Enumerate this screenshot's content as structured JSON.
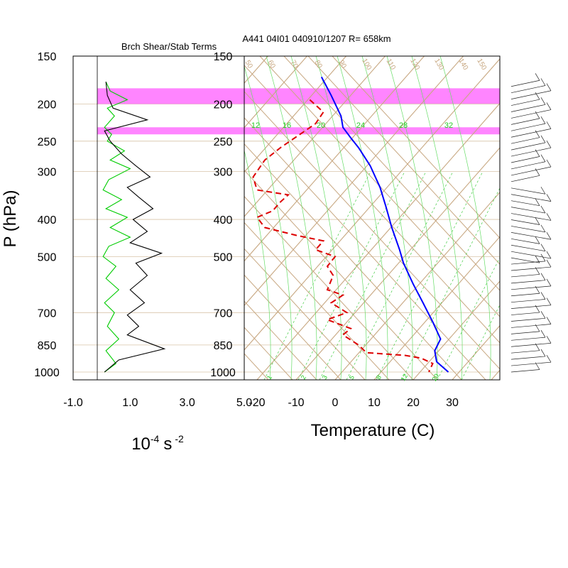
{
  "chart_data": [
    {
      "type": "line",
      "title": "Brch Shear/Stab Terms",
      "ylabel": "P (hPa)",
      "xlabel_base": "10",
      "xlabel_exp": "-4",
      "xlabel_unit": "s",
      "xlabel_unit_exp": "-2",
      "xticks": [
        "-1.0",
        "1.0",
        "3.0",
        "5.0"
      ],
      "yticks": [
        "150",
        "200",
        "250",
        "300",
        "400",
        "500",
        "700",
        "850",
        "1000"
      ],
      "y_scale": "log",
      "ylim": [
        1000,
        150
      ],
      "xlim": [
        -1.0,
        5.0
      ],
      "series": [
        {
          "color": "#00cc00",
          "points": [
            [
              0.15,
              175
            ],
            [
              0.3,
              185
            ],
            [
              0.9,
              195
            ],
            [
              0.2,
              205
            ],
            [
              0.45,
              215
            ],
            [
              0.1,
              230
            ],
            [
              0.35,
              240
            ],
            [
              0.2,
              250
            ],
            [
              0.8,
              265
            ],
            [
              0.3,
              280
            ],
            [
              1.0,
              295
            ],
            [
              0.25,
              315
            ],
            [
              0.05,
              335
            ],
            [
              0.7,
              355
            ],
            [
              0.15,
              375
            ],
            [
              0.9,
              395
            ],
            [
              0.3,
              420
            ],
            [
              1.0,
              445
            ],
            [
              0.25,
              470
            ],
            [
              0.05,
              500
            ],
            [
              0.5,
              530
            ],
            [
              0.15,
              570
            ],
            [
              0.6,
              610
            ],
            [
              0.1,
              660
            ],
            [
              0.45,
              700
            ],
            [
              0.2,
              760
            ],
            [
              0.6,
              820
            ],
            [
              0.15,
              880
            ],
            [
              0.5,
              950
            ],
            [
              0.1,
              1000
            ]
          ]
        },
        {
          "color": "#000000",
          "points": [
            [
              0.15,
              175
            ],
            [
              0.2,
              190
            ],
            [
              0.4,
              205
            ],
            [
              1.6,
              220
            ],
            [
              0.1,
              235
            ],
            [
              0.3,
              250
            ],
            [
              0.7,
              270
            ],
            [
              1.2,
              290
            ],
            [
              1.7,
              310
            ],
            [
              0.9,
              330
            ],
            [
              1.3,
              350
            ],
            [
              1.8,
              375
            ],
            [
              1.1,
              400
            ],
            [
              1.6,
              430
            ],
            [
              1.0,
              460
            ],
            [
              2.1,
              490
            ],
            [
              1.2,
              520
            ],
            [
              1.6,
              560
            ],
            [
              1.0,
              610
            ],
            [
              1.5,
              660
            ],
            [
              0.9,
              710
            ],
            [
              1.3,
              760
            ],
            [
              0.9,
              800
            ],
            [
              2.2,
              870
            ],
            [
              0.6,
              930
            ],
            [
              0.1,
              1000
            ]
          ]
        }
      ]
    },
    {
      "type": "line",
      "title": "A441 04I01 040910/1207 R= 658km",
      "xlabel": "Temperature (C)",
      "xticks": [
        "-20",
        "-10",
        "0",
        "10",
        "20",
        "30"
      ],
      "yticks": [
        "150",
        "200",
        "250",
        "300",
        "400",
        "500",
        "700",
        "850",
        "1000"
      ],
      "y_scale": "log",
      "ylim": [
        1000,
        150
      ],
      "xlim": [
        -23,
        42
      ],
      "shaded_layers": [
        [
          182,
          200
        ],
        [
          230,
          240
        ]
      ],
      "mixing_ratio_labels_top": [
        "12",
        "16",
        "20",
        "24",
        "28",
        "32"
      ],
      "mixing_ratio_labels_bottom": [
        "1",
        "2",
        "3",
        "5",
        "8",
        "12",
        "20"
      ],
      "theta_labels": [
        "50",
        "60",
        "70",
        "80",
        "90",
        "100",
        "110",
        "120",
        "130",
        "140",
        "150"
      ],
      "series": [
        {
          "name": "temperature",
          "color": "#0000ff",
          "points": [
            [
              -3.5,
              170
            ],
            [
              -1,
              190
            ],
            [
              1.5,
              215
            ],
            [
              2,
              230
            ],
            [
              4,
              245
            ],
            [
              6,
              260
            ],
            [
              9,
              290
            ],
            [
              11.5,
              330
            ],
            [
              13,
              370
            ],
            [
              14.5,
              420
            ],
            [
              16.5,
              480
            ],
            [
              17.5,
              520
            ],
            [
              20,
              590
            ],
            [
              22.5,
              660
            ],
            [
              25,
              740
            ],
            [
              27,
              820
            ],
            [
              25.5,
              880
            ],
            [
              26,
              940
            ],
            [
              29,
              1000
            ]
          ]
        },
        {
          "name": "dewpoint",
          "color": "#dd0000",
          "points": [
            [
              -6.5,
              195
            ],
            [
              -3,
              210
            ],
            [
              -5,
              225
            ],
            [
              -9,
              240
            ],
            [
              -14,
              260
            ],
            [
              -18,
              280
            ],
            [
              -21,
              310
            ],
            [
              -20,
              335
            ],
            [
              -12,
              345
            ],
            [
              -14,
              360
            ],
            [
              -16,
              380
            ],
            [
              -20,
              395
            ],
            [
              -18,
              420
            ],
            [
              -10,
              440
            ],
            [
              -3,
              455
            ],
            [
              -5,
              480
            ],
            [
              0,
              500
            ],
            [
              -2,
              530
            ],
            [
              -0.5,
              560
            ],
            [
              -2,
              610
            ],
            [
              2,
              630
            ],
            [
              -1,
              660
            ],
            [
              3,
              700
            ],
            [
              -2,
              730
            ],
            [
              4,
              770
            ],
            [
              2,
              800
            ],
            [
              6,
              850
            ],
            [
              8,
              890
            ],
            [
              18,
              905
            ],
            [
              22,
              920
            ],
            [
              25,
              950
            ],
            [
              24,
              1000
            ]
          ]
        }
      ]
    }
  ]
}
